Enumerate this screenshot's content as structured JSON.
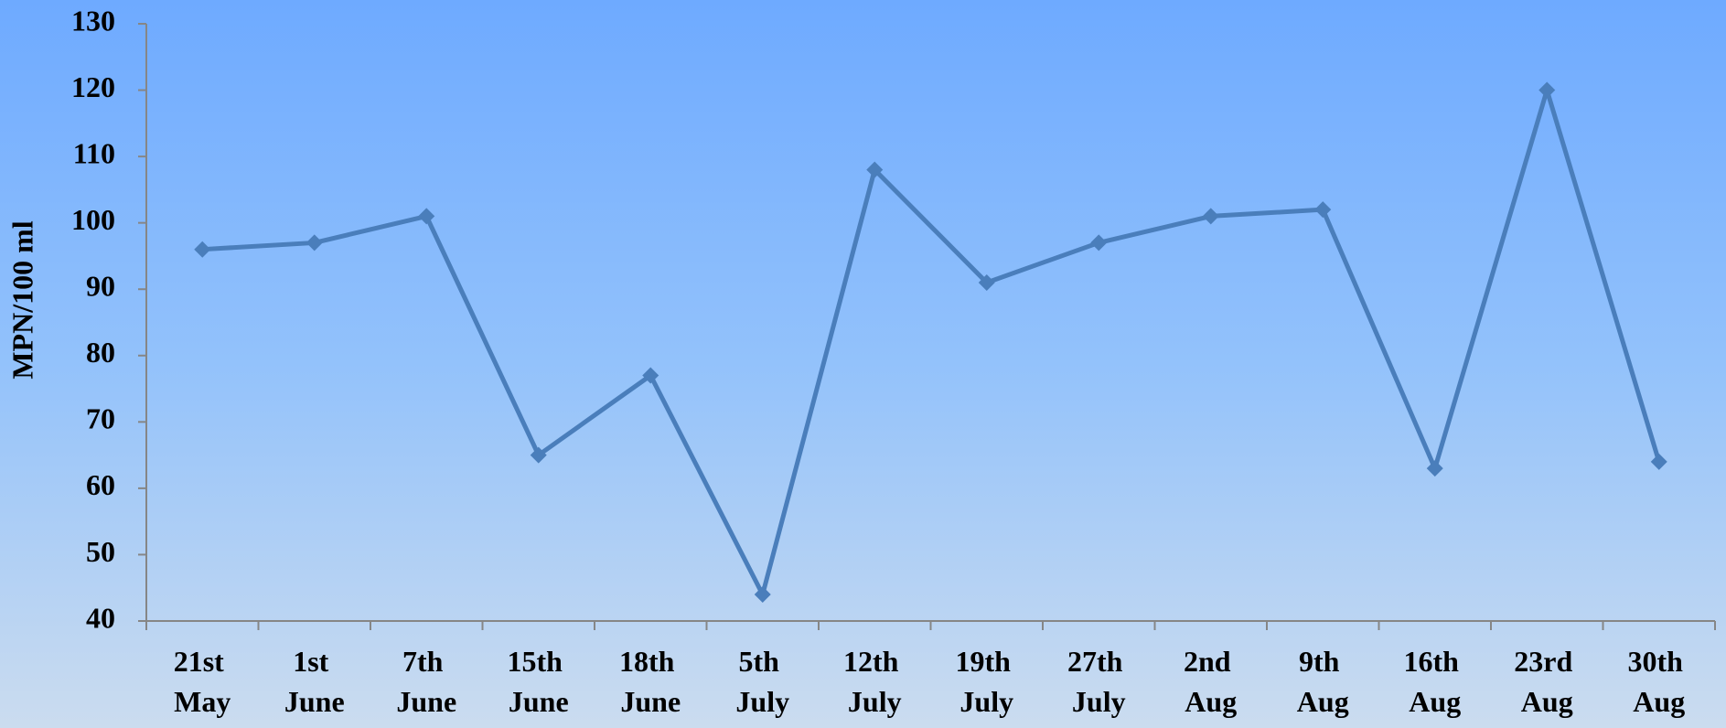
{
  "chart_data": {
    "type": "line",
    "y_label": "MPN/100 ml",
    "categories": [
      "21st May",
      "1st June",
      "7th June",
      "15th June",
      "18th June",
      "5th July",
      "12th July",
      "19th July",
      "27th July",
      "2nd Aug",
      "9th Aug",
      "16th Aug",
      "23rd Aug",
      "30th Aug"
    ],
    "values": [
      96,
      97,
      101,
      65,
      77,
      44,
      108,
      91,
      97,
      101,
      102,
      63,
      120,
      64
    ],
    "color": "#4a7ebb",
    "marker": "diamond",
    "ylim": [
      40,
      130
    ],
    "yticks": [
      40,
      50,
      60,
      70,
      80,
      90,
      100,
      110,
      120,
      130
    ],
    "grid": false
  }
}
